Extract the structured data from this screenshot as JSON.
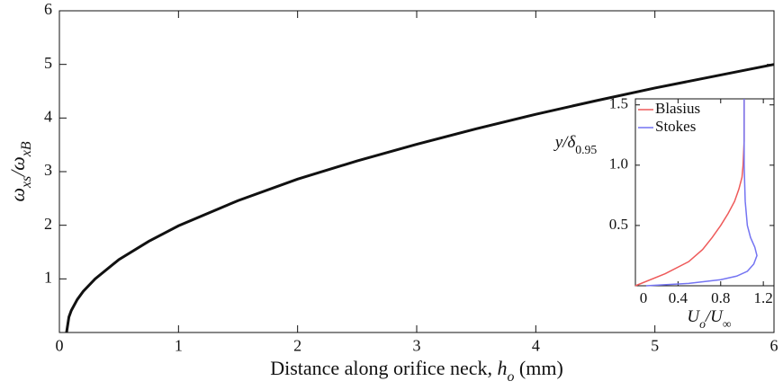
{
  "chart_data": [
    {
      "type": "line",
      "xlabel": [
        {
          "text": "Distance along orifice neck, ",
          "style": "normal"
        },
        {
          "text": "h",
          "style": "italic"
        },
        {
          "text": "o",
          "style": "italic-sub"
        },
        {
          "text": " (mm)",
          "style": "normal"
        }
      ],
      "ylabel": [
        {
          "text": "ω",
          "style": "italic"
        },
        {
          "text": "xs",
          "style": "italic-sub"
        },
        {
          "text": "/ω",
          "style": "italic"
        },
        {
          "text": "xB",
          "style": "italic-sub"
        }
      ],
      "x": [
        0.06,
        0.08,
        0.1,
        0.15,
        0.2,
        0.3,
        0.5,
        0.75,
        1,
        1.5,
        2,
        2.5,
        3,
        3.5,
        4,
        4.5,
        5,
        5.5,
        6
      ],
      "values": [
        0,
        0.29,
        0.41,
        0.615,
        0.767,
        1.0,
        1.36,
        1.7,
        1.99,
        2.46,
        2.86,
        3.2,
        3.51,
        3.8,
        4.07,
        4.32,
        4.56,
        4.78,
        5.0
      ],
      "color": "#111111",
      "xlim": [
        0,
        6
      ],
      "ylim": [
        0,
        6
      ],
      "xticks": [
        0,
        1,
        2,
        3,
        4,
        5,
        6
      ],
      "yticks": [
        1,
        2,
        3,
        4,
        5,
        6
      ]
    },
    {
      "type": "line",
      "xlabel": [
        {
          "text": "U",
          "style": "italic"
        },
        {
          "text": "o",
          "style": "italic-sub"
        },
        {
          "text": "/U",
          "style": "italic"
        },
        {
          "text": "∞",
          "style": "sub"
        }
      ],
      "ylabel": [
        {
          "text": "y/δ",
          "style": "italic"
        },
        {
          "text": "0.95",
          "style": "sub"
        }
      ],
      "series": [
        {
          "name": "Blasius",
          "color": "#ee5a5a",
          "x": [
            0,
            0.28,
            0.5,
            0.63,
            0.72,
            0.8,
            0.87,
            0.93,
            0.97,
            1.0,
            1.01,
            1.02,
            1.02
          ],
          "values": [
            0,
            0.1,
            0.2,
            0.3,
            0.4,
            0.5,
            0.6,
            0.7,
            0.8,
            0.9,
            1.0,
            1.2,
            1.55
          ]
        },
        {
          "name": "Stokes",
          "color": "#7474f2",
          "x": [
            0.1,
            0.5,
            0.8,
            0.95,
            1.05,
            1.11,
            1.14,
            1.12,
            1.08,
            1.05,
            1.03,
            1.02,
            1.02
          ],
          "values": [
            0,
            0.02,
            0.05,
            0.08,
            0.12,
            0.18,
            0.25,
            0.32,
            0.4,
            0.5,
            0.7,
            1.0,
            1.55
          ]
        }
      ],
      "xlim": [
        0,
        1.3
      ],
      "ylim": [
        0,
        1.55
      ],
      "xticks": [
        0,
        0.4,
        0.8,
        1.2
      ],
      "yticks": [
        0.5,
        {
          "value": 1,
          "label": "1.0"
        },
        1.5
      ],
      "legend": "upper-left"
    }
  ]
}
